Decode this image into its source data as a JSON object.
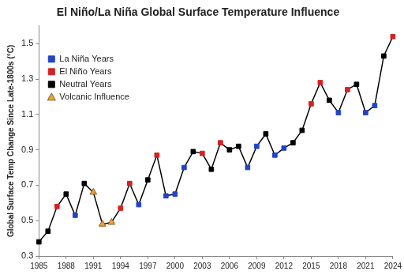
{
  "chart_data": {
    "type": "line",
    "title": "El Niño/La Niña Global Surface Temperature Influence",
    "y_label": "Global Surface Temp Change Since Late-1800s (°C)",
    "color": "#000000",
    "x": [
      1985,
      1986,
      1987,
      1988,
      1989,
      1990,
      1991,
      1992,
      1993,
      1994,
      1995,
      1996,
      1997,
      1998,
      1999,
      2000,
      2001,
      2002,
      2003,
      2004,
      2005,
      2006,
      2007,
      2008,
      2009,
      2010,
      2011,
      2012,
      2013,
      2014,
      2015,
      2016,
      2017,
      2018,
      2019,
      2020,
      2021,
      2022,
      2023,
      2024
    ],
    "series": [
      {
        "name": "La Niña Years",
        "type": "scatter",
        "color": "#2244c4",
        "marker": "square",
        "values": [
          null,
          null,
          null,
          null,
          0.53,
          null,
          null,
          null,
          null,
          null,
          null,
          0.59,
          null,
          null,
          0.64,
          0.65,
          0.8,
          null,
          null,
          null,
          null,
          null,
          null,
          0.8,
          0.92,
          null,
          0.87,
          0.91,
          null,
          null,
          null,
          null,
          null,
          1.11,
          null,
          null,
          1.11,
          1.15,
          null,
          null
        ]
      },
      {
        "name": "El Niño Years",
        "type": "scatter",
        "color": "#d42222",
        "marker": "square",
        "values": [
          null,
          null,
          0.58,
          null,
          null,
          null,
          null,
          null,
          null,
          0.57,
          0.71,
          null,
          null,
          0.87,
          null,
          null,
          null,
          null,
          0.88,
          null,
          0.94,
          null,
          null,
          null,
          null,
          null,
          null,
          null,
          null,
          null,
          1.16,
          1.28,
          null,
          null,
          1.24,
          null,
          null,
          null,
          null,
          1.54
        ]
      },
      {
        "name": "Neutral Years",
        "type": "scatter",
        "color": "#000000",
        "marker": "square",
        "values": [
          0.38,
          0.44,
          null,
          0.65,
          null,
          0.71,
          null,
          null,
          null,
          null,
          null,
          null,
          0.73,
          null,
          null,
          null,
          null,
          0.89,
          null,
          0.79,
          null,
          0.9,
          0.92,
          null,
          null,
          0.99,
          null,
          null,
          0.94,
          1.01,
          null,
          null,
          1.18,
          null,
          null,
          1.27,
          null,
          null,
          1.43,
          null
        ]
      },
      {
        "name": "Volcanic Influence",
        "type": "scatter",
        "color": "#f0a040",
        "marker": "triangle",
        "values": [
          null,
          null,
          null,
          null,
          null,
          null,
          0.66,
          0.48,
          0.49,
          null,
          null,
          null,
          null,
          null,
          null,
          null,
          null,
          null,
          null,
          null,
          null,
          null,
          null,
          null,
          null,
          null,
          null,
          null,
          null,
          null,
          null,
          null,
          null,
          null,
          null,
          null,
          null,
          null,
          null,
          null
        ]
      }
    ],
    "xlim": [
      1985,
      2024
    ],
    "xticks": [
      1985,
      1988,
      1991,
      1994,
      1997,
      2000,
      2003,
      2006,
      2009,
      2012,
      2015,
      2018,
      2021,
      2024
    ],
    "ylim": [
      0.3,
      1.6
    ],
    "yticks": [
      0.3,
      0.5,
      0.7,
      0.9,
      1.1,
      1.3,
      1.5
    ],
    "grid": false,
    "legend": "upper left"
  }
}
